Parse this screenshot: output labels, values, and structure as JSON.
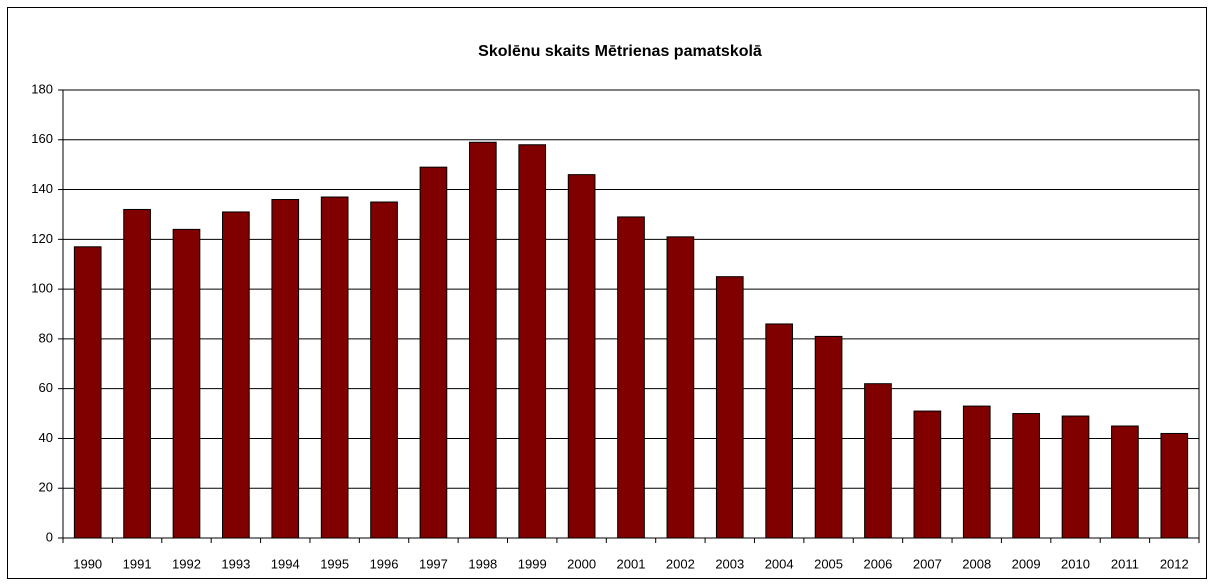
{
  "chart_data": {
    "type": "bar",
    "title": "Skolēnu skaits Mētrienas pamatskolā",
    "categories": [
      "1990",
      "1991",
      "1992",
      "1993",
      "1994",
      "1995",
      "1996",
      "1997",
      "1998",
      "1999",
      "2000",
      "2001",
      "2002",
      "2003",
      "2004",
      "2005",
      "2006",
      "2007",
      "2008",
      "2009",
      "2010",
      "2011",
      "2012"
    ],
    "values": [
      117,
      132,
      124,
      131,
      136,
      137,
      135,
      149,
      159,
      158,
      146,
      129,
      121,
      105,
      86,
      81,
      62,
      51,
      53,
      50,
      49,
      45,
      42
    ],
    "color": "#800000",
    "ylim": [
      0,
      180
    ],
    "yticks": [
      0,
      20,
      40,
      60,
      80,
      100,
      120,
      140,
      160,
      180
    ],
    "grid": true
  }
}
